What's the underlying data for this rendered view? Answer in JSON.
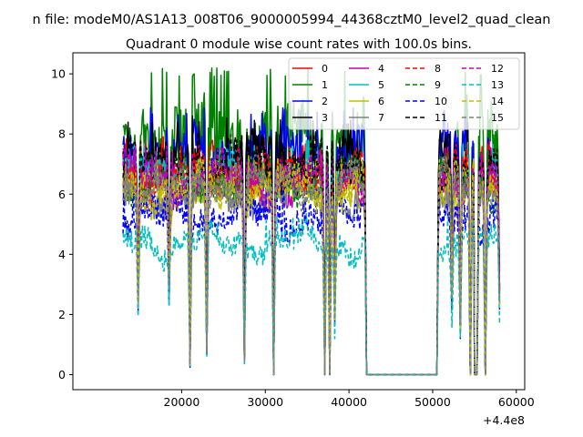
{
  "figure": {
    "suptitle": "n file: modeM0/AS1A13_008T06_9000005994_44368cztM0_level2_quad_clean",
    "title": "Quadrant 0 module wise count rates with 100.0s bins."
  },
  "chart_data": {
    "type": "line",
    "title": "Quadrant 0 module wise count rates with 100.0s bins.",
    "xlabel": "",
    "ylabel": "",
    "x_offset_label": "+4.4e8",
    "xlim": [
      7000,
      61000
    ],
    "ylim": [
      -0.5,
      10.7
    ],
    "x_ticks": [
      20000,
      30000,
      40000,
      50000,
      60000
    ],
    "x_tick_labels": [
      "20000",
      "30000",
      "40000",
      "50000",
      "60000"
    ],
    "y_ticks": [
      0,
      2,
      4,
      6,
      8,
      10
    ],
    "y_tick_labels": [
      "0",
      "2",
      "4",
      "6",
      "8",
      "10"
    ],
    "grid": false,
    "legend_placement": "top-right",
    "legend_columns": 4,
    "x_segments": [
      [
        13000,
        21000
      ],
      [
        21000,
        23000
      ],
      [
        23000,
        27500
      ],
      [
        27500,
        31000
      ],
      [
        31000,
        37100
      ],
      [
        37100,
        37700
      ],
      [
        37700,
        42100
      ],
      [
        50500,
        54500
      ],
      [
        54500,
        55300
      ],
      [
        55300,
        56300
      ],
      [
        56300,
        58000
      ]
    ],
    "flat_gap": {
      "x": [
        42100,
        50500
      ],
      "value": 0
    },
    "dips": [
      {
        "x": 14800,
        "depth": 0.6
      },
      {
        "x": 18500,
        "depth": 0.55
      },
      {
        "x": 21000,
        "depth": 0.95
      },
      {
        "x": 23000,
        "depth": 0.88
      },
      {
        "x": 27500,
        "depth": 0.92
      },
      {
        "x": 31000,
        "depth": 1.0
      },
      {
        "x": 37100,
        "depth": 1.0
      },
      {
        "x": 37700,
        "depth": 1.0
      },
      {
        "x": 38300,
        "depth": 0.7
      },
      {
        "x": 42100,
        "depth": 1.0
      },
      {
        "x": 50500,
        "depth": 1.0
      },
      {
        "x": 52300,
        "depth": 0.6
      },
      {
        "x": 53300,
        "depth": 0.75
      },
      {
        "x": 54500,
        "depth": 1.0
      },
      {
        "x": 55300,
        "depth": 1.0
      },
      {
        "x": 56300,
        "depth": 1.0
      },
      {
        "x": 58000,
        "depth": 0.6
      }
    ],
    "series": [
      {
        "name": "0",
        "color": "#ff0000",
        "style": "solid",
        "level": 6.9,
        "peak": 8.0
      },
      {
        "name": "1",
        "color": "#008000",
        "style": "solid",
        "level": 7.8,
        "peak": 10.2
      },
      {
        "name": "2",
        "color": "#0000ff",
        "style": "solid",
        "level": 7.3,
        "peak": 8.9
      },
      {
        "name": "3",
        "color": "#000000",
        "style": "solid",
        "level": 7.1,
        "peak": 8.6
      },
      {
        "name": "4",
        "color": "#bf00bf",
        "style": "solid",
        "level": 6.5,
        "peak": 7.6
      },
      {
        "name": "5",
        "color": "#00bfbf",
        "style": "solid",
        "level": 6.7,
        "peak": 7.8
      },
      {
        "name": "6",
        "color": "#bfbf00",
        "style": "solid",
        "level": 6.2,
        "peak": 7.2
      },
      {
        "name": "7",
        "color": "#808080",
        "style": "solid",
        "level": 6.0,
        "peak": 7.0
      },
      {
        "name": "8",
        "color": "#ff0000",
        "style": "dashed",
        "level": 6.6,
        "peak": 7.8
      },
      {
        "name": "9",
        "color": "#008000",
        "style": "dashed",
        "level": 6.4,
        "peak": 7.5
      },
      {
        "name": "10",
        "color": "#0000ff",
        "style": "dashed",
        "level": 5.3,
        "peak": 6.4
      },
      {
        "name": "11",
        "color": "#000000",
        "style": "dashed",
        "level": 6.9,
        "peak": 8.1
      },
      {
        "name": "12",
        "color": "#bf00bf",
        "style": "dashed",
        "level": 6.5,
        "peak": 7.6
      },
      {
        "name": "13",
        "color": "#00bfbf",
        "style": "dashed",
        "level": 4.4,
        "peak": 5.3
      },
      {
        "name": "14",
        "color": "#bfbf00",
        "style": "dashed",
        "level": 6.2,
        "peak": 7.3
      },
      {
        "name": "15",
        "color": "#808080",
        "style": "dashed",
        "level": 6.3,
        "peak": 7.3
      }
    ]
  }
}
